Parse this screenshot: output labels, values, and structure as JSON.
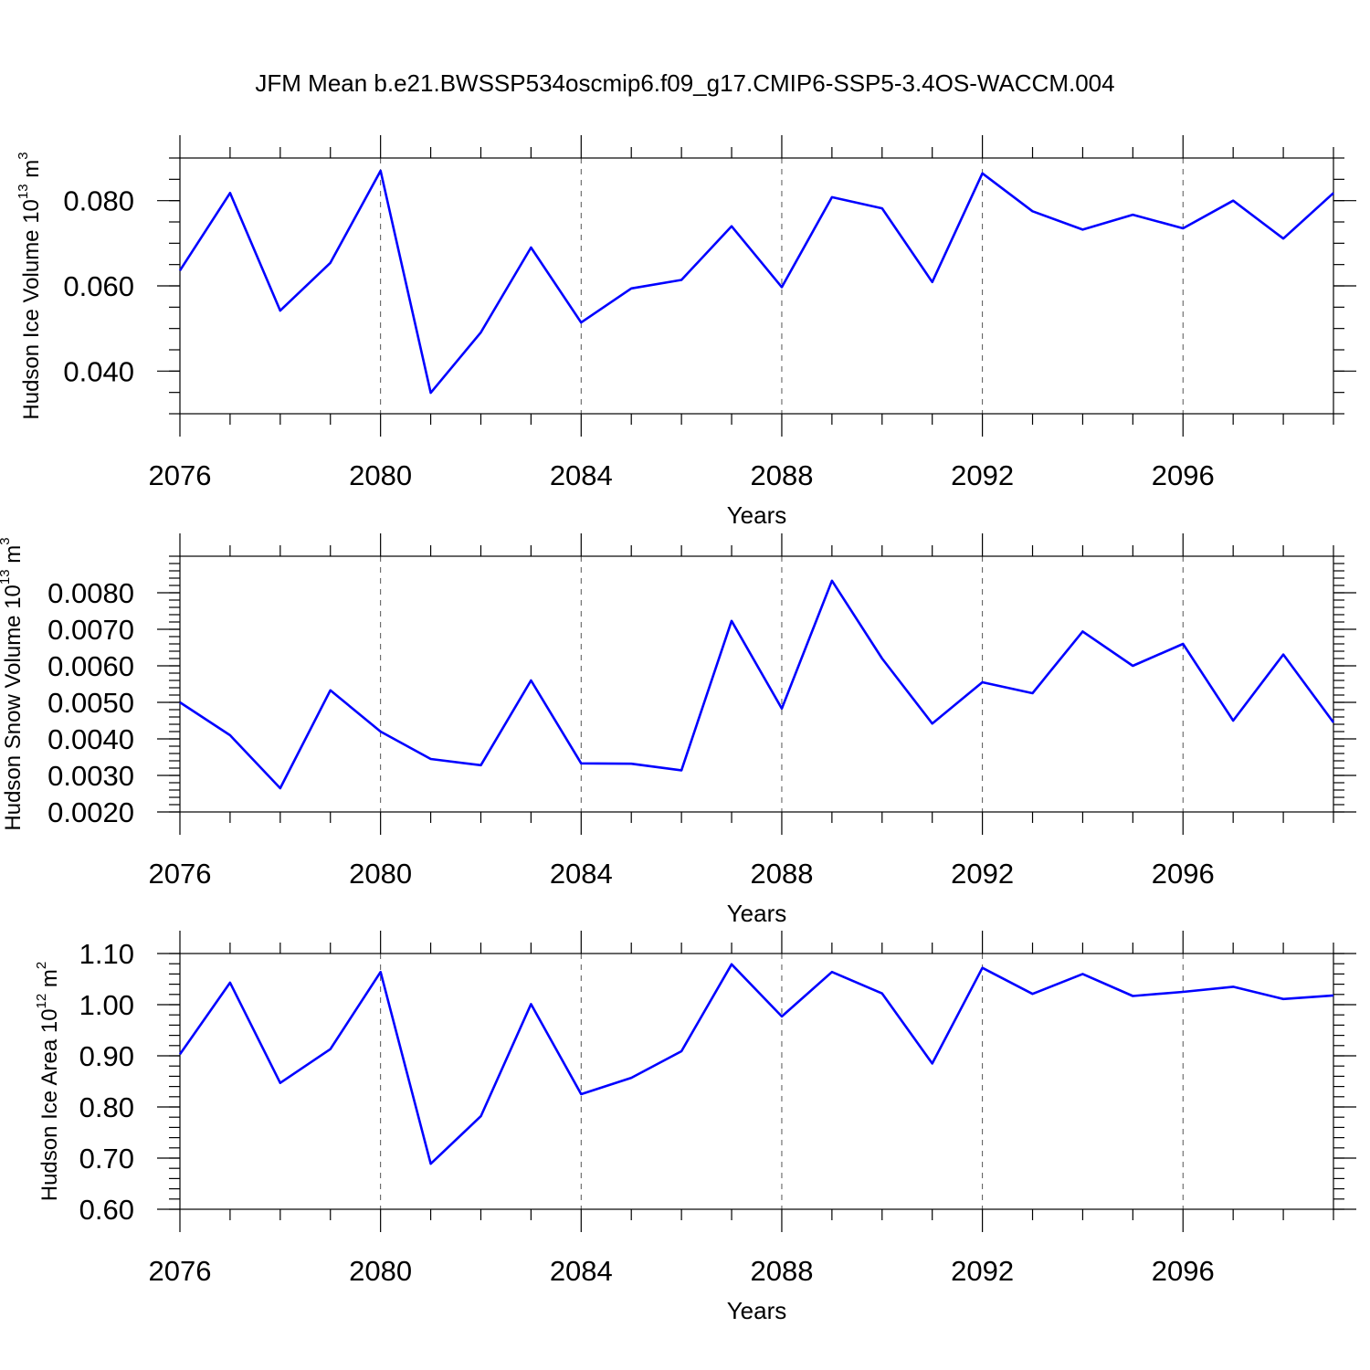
{
  "figure_title": "JFM Mean b.e21.BWSSP534oscmip6.f09_g17.CMIP6-SSP5-3.4OS-WACCM.004",
  "colors": {
    "series": "#0000ff",
    "axes": "#000000",
    "grid": "#555555"
  },
  "chart_data": [
    {
      "type": "line",
      "ylabel": {
        "main": "Hudson Ice Volume 10",
        "exp": "13",
        "unit": " m",
        "unit_exp": "3"
      },
      "xlabel": "Years",
      "xlim": [
        2076,
        2099
      ],
      "xticks": [
        2076,
        2080,
        2084,
        2088,
        2092,
        2096
      ],
      "ylim": [
        0.03,
        0.09
      ],
      "yticks": [
        0.04,
        0.06,
        0.08
      ],
      "ytick_labels": [
        "0.040",
        "0.060",
        "0.080"
      ],
      "y_minor_step": 0.005,
      "grid": "x-dashed",
      "x": [
        2076,
        2077,
        2078,
        2079,
        2080,
        2081,
        2082,
        2083,
        2084,
        2085,
        2086,
        2087,
        2088,
        2089,
        2090,
        2091,
        2092,
        2093,
        2094,
        2095,
        2096,
        2097,
        2098,
        2099
      ],
      "series": [
        {
          "values": [
            0.0636,
            0.0818,
            0.0542,
            0.0654,
            0.087,
            0.0349,
            0.0491,
            0.069,
            0.0514,
            0.0594,
            0.0614,
            0.074,
            0.0597,
            0.0808,
            0.0782,
            0.0609,
            0.0864,
            0.0775,
            0.0732,
            0.0767,
            0.0735,
            0.08,
            0.0711,
            0.0818
          ]
        }
      ]
    },
    {
      "type": "line",
      "ylabel": {
        "main": "Hudson Snow Volume 10",
        "exp": "13",
        "unit": " m",
        "unit_exp": "3"
      },
      "xlabel": "Years",
      "xlim": [
        2076,
        2099
      ],
      "xticks": [
        2076,
        2080,
        2084,
        2088,
        2092,
        2096
      ],
      "ylim": [
        0.002,
        0.009
      ],
      "yticks": [
        0.002,
        0.003,
        0.004,
        0.005,
        0.006,
        0.007,
        0.008
      ],
      "ytick_labels": [
        "0.0020",
        "0.0030",
        "0.0040",
        "0.0050",
        "0.0060",
        "0.0070",
        "0.0080"
      ],
      "y_minor_step": 0.0002,
      "grid": "x-dashed",
      "x": [
        2076,
        2077,
        2078,
        2079,
        2080,
        2081,
        2082,
        2083,
        2084,
        2085,
        2086,
        2087,
        2088,
        2089,
        2090,
        2091,
        2092,
        2093,
        2094,
        2095,
        2096,
        2097,
        2098,
        2099
      ],
      "series": [
        {
          "values": [
            0.005,
            0.0041,
            0.00265,
            0.00533,
            0.0042,
            0.00345,
            0.00328,
            0.0056,
            0.00333,
            0.00332,
            0.00314,
            0.00723,
            0.00483,
            0.00833,
            0.0062,
            0.00442,
            0.00555,
            0.00525,
            0.00694,
            0.006,
            0.0066,
            0.0045,
            0.00631,
            0.00445
          ]
        }
      ]
    },
    {
      "type": "line",
      "ylabel": {
        "main": "Hudson Ice Area 10",
        "exp": "12",
        "unit": " m",
        "unit_exp": "2"
      },
      "xlabel": "Years",
      "xlim": [
        2076,
        2099
      ],
      "xticks": [
        2076,
        2080,
        2084,
        2088,
        2092,
        2096
      ],
      "ylim": [
        0.6,
        1.1
      ],
      "yticks": [
        0.6,
        0.7,
        0.8,
        0.9,
        1.0,
        1.1
      ],
      "ytick_labels": [
        "0.60",
        "0.70",
        "0.80",
        "0.90",
        "1.00",
        "1.10"
      ],
      "y_minor_step": 0.02,
      "grid": "x-dashed",
      "x": [
        2076,
        2077,
        2078,
        2079,
        2080,
        2081,
        2082,
        2083,
        2084,
        2085,
        2086,
        2087,
        2088,
        2089,
        2090,
        2091,
        2092,
        2093,
        2094,
        2095,
        2096,
        2097,
        2098,
        2099
      ],
      "series": [
        {
          "values": [
            0.903,
            1.043,
            0.847,
            0.913,
            1.064,
            0.689,
            0.782,
            1.001,
            0.825,
            0.857,
            0.909,
            1.079,
            0.977,
            1.064,
            1.022,
            0.885,
            1.072,
            1.021,
            1.06,
            1.017,
            1.025,
            1.035,
            1.011,
            1.018
          ]
        }
      ]
    }
  ]
}
